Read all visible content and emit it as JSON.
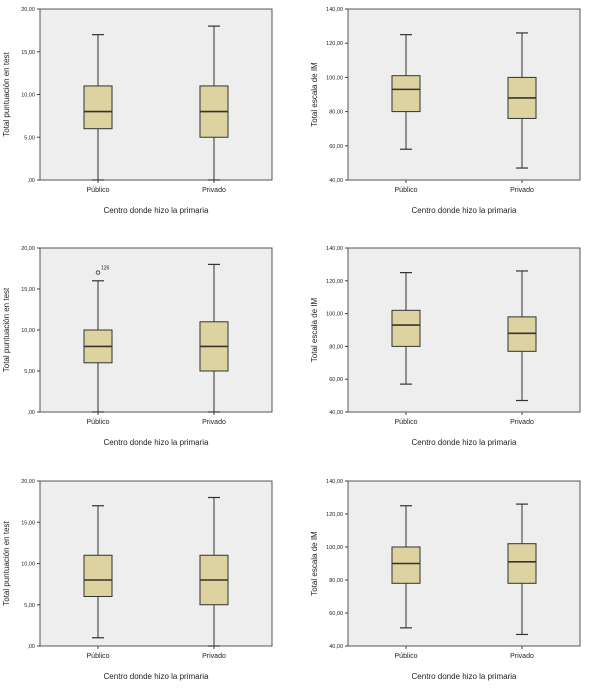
{
  "colors": {
    "plot_bg": "#eeeeee",
    "plot_border": "#555555",
    "box_fill": "#dcd3a0",
    "box_stroke": "#333333"
  },
  "chart_data": [
    {
      "type": "boxplot",
      "xlabel": "Centro donde hizo la primaria",
      "ylabel": "Total puntuación en test",
      "ylim": [
        0,
        20
      ],
      "yticks": [
        {
          "value": 0,
          "label": ",00"
        },
        {
          "value": 5,
          "label": "5,00"
        },
        {
          "value": 10,
          "label": "10,00"
        },
        {
          "value": 15,
          "label": "15,00"
        },
        {
          "value": 20,
          "label": "20,00"
        }
      ],
      "grid": false,
      "categories": [
        "Público",
        "Privado"
      ],
      "boxes": [
        {
          "category": "Público",
          "min": 0,
          "q1": 6,
          "median": 8,
          "q3": 11,
          "max": 17,
          "outliers": []
        },
        {
          "category": "Privado",
          "min": 0,
          "q1": 5,
          "median": 8,
          "q3": 11,
          "max": 18,
          "outliers": []
        }
      ]
    },
    {
      "type": "boxplot",
      "xlabel": "Centro donde hizo la primaria",
      "ylabel": "Total escala de IM",
      "ylim": [
        40,
        140
      ],
      "yticks": [
        {
          "value": 40,
          "label": "40,00"
        },
        {
          "value": 60,
          "label": "60,00"
        },
        {
          "value": 80,
          "label": "80,00"
        },
        {
          "value": 100,
          "label": "100,00"
        },
        {
          "value": 120,
          "label": "120,00"
        },
        {
          "value": 140,
          "label": "140,00"
        }
      ],
      "grid": false,
      "categories": [
        "Público",
        "Privado"
      ],
      "boxes": [
        {
          "category": "Público",
          "min": 58,
          "q1": 80,
          "median": 93,
          "q3": 101,
          "max": 125,
          "outliers": []
        },
        {
          "category": "Privado",
          "min": 47,
          "q1": 76,
          "median": 88,
          "q3": 100,
          "max": 126,
          "outliers": []
        }
      ]
    },
    {
      "type": "boxplot",
      "xlabel": "Centro donde hizo la primaria",
      "ylabel": "Total puntuación en test",
      "ylim": [
        0,
        20
      ],
      "yticks": [
        {
          "value": 0,
          "label": ",00"
        },
        {
          "value": 5,
          "label": "5,00"
        },
        {
          "value": 10,
          "label": "10,00"
        },
        {
          "value": 15,
          "label": "15,00"
        },
        {
          "value": 20,
          "label": "20,00"
        }
      ],
      "grid": false,
      "categories": [
        "Público",
        "Privado"
      ],
      "boxes": [
        {
          "category": "Público",
          "min": 0,
          "q1": 6,
          "median": 8,
          "q3": 10,
          "max": 16,
          "outliers": [
            {
              "value": 17,
              "label": "126"
            }
          ]
        },
        {
          "category": "Privado",
          "min": 0,
          "q1": 5,
          "median": 8,
          "q3": 11,
          "max": 18,
          "outliers": []
        }
      ]
    },
    {
      "type": "boxplot",
      "xlabel": "Centro donde hizo la primaria",
      "ylabel": "Total escala de IM",
      "ylim": [
        40,
        140
      ],
      "yticks": [
        {
          "value": 40,
          "label": "40,00"
        },
        {
          "value": 60,
          "label": "60,00"
        },
        {
          "value": 80,
          "label": "80,00"
        },
        {
          "value": 100,
          "label": "100,00"
        },
        {
          "value": 120,
          "label": "120,00"
        },
        {
          "value": 140,
          "label": "140,00"
        }
      ],
      "grid": false,
      "categories": [
        "Público",
        "Privado"
      ],
      "boxes": [
        {
          "category": "Público",
          "min": 57,
          "q1": 80,
          "median": 93,
          "q3": 102,
          "max": 125,
          "outliers": []
        },
        {
          "category": "Privado",
          "min": 47,
          "q1": 77,
          "median": 88,
          "q3": 98,
          "max": 126,
          "outliers": []
        }
      ]
    },
    {
      "type": "boxplot",
      "xlabel": "Centro donde hizo la primaria",
      "ylabel": "Total puntuación en test",
      "ylim": [
        0,
        20
      ],
      "yticks": [
        {
          "value": 0,
          "label": ",00"
        },
        {
          "value": 5,
          "label": "5,00"
        },
        {
          "value": 10,
          "label": "10,00"
        },
        {
          "value": 15,
          "label": "15,00"
        },
        {
          "value": 20,
          "label": "20,00"
        }
      ],
      "grid": false,
      "categories": [
        "Público",
        "Privado"
      ],
      "boxes": [
        {
          "category": "Público",
          "min": 1,
          "q1": 6,
          "median": 8,
          "q3": 11,
          "max": 17,
          "outliers": []
        },
        {
          "category": "Privado",
          "min": 0,
          "q1": 5,
          "median": 8,
          "q3": 11,
          "max": 18,
          "outliers": []
        }
      ]
    },
    {
      "type": "boxplot",
      "xlabel": "Centro donde hizo la primaria",
      "ylabel": "Total escala de IM",
      "ylim": [
        40,
        140
      ],
      "yticks": [
        {
          "value": 40,
          "label": "40,00"
        },
        {
          "value": 60,
          "label": "60,00"
        },
        {
          "value": 80,
          "label": "80,00"
        },
        {
          "value": 100,
          "label": "100,00"
        },
        {
          "value": 120,
          "label": "120,00"
        },
        {
          "value": 140,
          "label": "140,00"
        }
      ],
      "grid": false,
      "categories": [
        "Público",
        "Privado"
      ],
      "boxes": [
        {
          "category": "Público",
          "min": 51,
          "q1": 78,
          "median": 90,
          "q3": 100,
          "max": 125,
          "outliers": []
        },
        {
          "category": "Privado",
          "min": 47,
          "q1": 78,
          "median": 91,
          "q3": 102,
          "max": 126,
          "outliers": []
        }
      ]
    }
  ]
}
